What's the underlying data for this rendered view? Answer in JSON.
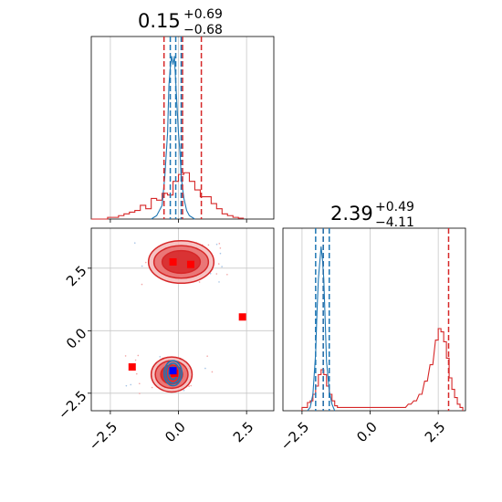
{
  "colors": {
    "red": "#d62728",
    "blue": "#1f77b4",
    "marker_red": "#ff0000",
    "marker_blue": "#0000ff",
    "grid": "#c8c8c8"
  },
  "chart_data": {
    "type": "corner",
    "grid": true,
    "x_range": [
      -3.2,
      3.5
    ],
    "y_range": [
      -3.2,
      4.1
    ],
    "ticks": [
      -2.5,
      0.0,
      2.5
    ],
    "tick_labels": [
      "−2.5",
      "0.0",
      "2.5"
    ],
    "param1_title": {
      "value": "0.15",
      "plus": "+0.69",
      "minus": "−0.68"
    },
    "param2_title": {
      "value": "2.39",
      "plus": "+0.49",
      "minus": "−4.11"
    },
    "param1_hist": {
      "bins_x": [
        -3.2,
        -3.0,
        -2.8,
        -2.6,
        -2.4,
        -2.2,
        -2.0,
        -1.8,
        -1.6,
        -1.4,
        -1.2,
        -1.0,
        -0.8,
        -0.6,
        -0.4,
        -0.2,
        0.0,
        0.2,
        0.4,
        0.6,
        0.8,
        1.0,
        1.2,
        1.4,
        1.6,
        1.8,
        2.0,
        2.2,
        2.4
      ],
      "red": [
        0,
        0,
        0,
        0.01,
        0.01,
        0.02,
        0.03,
        0.04,
        0.05,
        0.08,
        0.06,
        0.12,
        0.11,
        0.15,
        0.14,
        0.22,
        0.26,
        0.27,
        0.22,
        0.17,
        0.13,
        0.13,
        0.09,
        0.06,
        0.03,
        0.02,
        0.01,
        0.005
      ],
      "blue_centers": [
        -1.0,
        -0.8,
        -0.6,
        -0.5,
        -0.4,
        -0.35,
        -0.3,
        -0.25,
        -0.2,
        -0.15,
        -0.1,
        -0.05,
        0.0,
        0.05,
        0.1,
        0.15,
        0.2,
        0.3,
        0.4,
        0.6
      ],
      "blue": [
        0.0,
        0.02,
        0.08,
        0.25,
        0.5,
        0.78,
        0.88,
        0.95,
        0.9,
        0.95,
        0.8,
        0.65,
        0.5,
        0.4,
        0.25,
        0.18,
        0.12,
        0.05,
        0.02,
        0.0
      ],
      "red_lines": [
        -0.53,
        0.15,
        0.84
      ],
      "blue_lines": [
        -0.3,
        -0.1,
        0.1
      ]
    },
    "param2_hist": {
      "red_bins": [
        [
          -2.5,
          0.02
        ],
        [
          -2.4,
          0.02
        ],
        [
          -2.3,
          0.05
        ],
        [
          -2.2,
          0.06
        ],
        [
          -2.1,
          0.1
        ],
        [
          -2.0,
          0.15
        ],
        [
          -1.9,
          0.22
        ],
        [
          -1.8,
          0.25
        ],
        [
          -1.7,
          0.22
        ],
        [
          -1.6,
          0.15
        ],
        [
          -1.5,
          0.1
        ],
        [
          -1.4,
          0.06
        ],
        [
          -1.3,
          0.03
        ],
        [
          -1.2,
          0.02
        ],
        [
          1.2,
          0.02
        ],
        [
          1.4,
          0.04
        ],
        [
          1.6,
          0.06
        ],
        [
          1.8,
          0.1
        ],
        [
          2.0,
          0.18
        ],
        [
          2.2,
          0.28
        ],
        [
          2.4,
          0.43
        ],
        [
          2.5,
          0.5
        ],
        [
          2.6,
          0.48
        ],
        [
          2.7,
          0.42
        ],
        [
          2.8,
          0.32
        ],
        [
          2.9,
          0.2
        ],
        [
          3.0,
          0.13
        ],
        [
          3.1,
          0.08
        ],
        [
          3.2,
          0.04
        ],
        [
          3.3,
          0.02
        ]
      ],
      "blue_points": [
        [
          -2.3,
          0.0
        ],
        [
          -2.2,
          0.02
        ],
        [
          -2.1,
          0.1
        ],
        [
          -2.0,
          0.35
        ],
        [
          -1.95,
          0.6
        ],
        [
          -1.9,
          0.8
        ],
        [
          -1.85,
          0.9
        ],
        [
          -1.8,
          1.0
        ],
        [
          -1.75,
          0.92
        ],
        [
          -1.7,
          0.8
        ],
        [
          -1.65,
          0.55
        ],
        [
          -1.6,
          0.3
        ],
        [
          -1.5,
          0.12
        ],
        [
          -1.4,
          0.04
        ],
        [
          -1.3,
          0.0
        ]
      ],
      "red_lines": [
        -1.72,
        2.88
      ],
      "blue_lines": [
        -2.0,
        -1.72,
        -1.5
      ]
    },
    "joint": {
      "red_clusters": [
        {
          "cx": 0.1,
          "cy": 2.75,
          "levels": [
            [
              2.4,
              0.85
            ],
            [
              2.0,
              0.65
            ],
            [
              1.4,
              0.45
            ]
          ]
        },
        {
          "cx": -0.25,
          "cy": -1.75,
          "levels": [
            [
              1.5,
              0.7
            ],
            [
              1.2,
              0.55
            ],
            [
              0.8,
              0.38
            ]
          ]
        }
      ],
      "blue_cluster": {
        "cx": -0.2,
        "cy": -1.7,
        "levels": [
          [
            0.65,
            0.5
          ],
          [
            0.5,
            0.4
          ],
          [
            0.3,
            0.25
          ]
        ]
      },
      "red_squares": [
        [
          -0.2,
          2.75
        ],
        [
          0.45,
          2.65
        ],
        [
          2.35,
          0.55
        ],
        [
          -1.7,
          -1.45
        ],
        [
          -0.15,
          -1.7
        ]
      ],
      "blue_squares": [
        [
          -0.2,
          -1.6
        ]
      ]
    }
  }
}
